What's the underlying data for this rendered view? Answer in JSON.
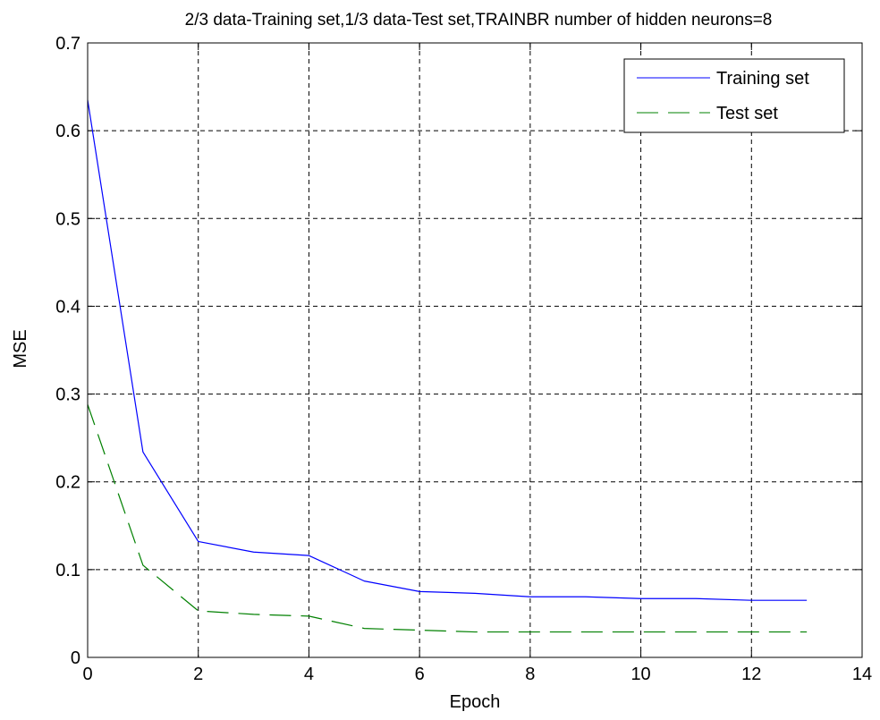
{
  "chart_data": {
    "type": "line",
    "title": "2/3 data-Training set,1/3 data-Test set,TRAINBR number of hidden neurons=8",
    "xlabel": "Epoch",
    "ylabel": "MSE",
    "xlim": [
      0,
      14
    ],
    "ylim": [
      0,
      0.7
    ],
    "xticks": [
      0,
      2,
      4,
      6,
      8,
      10,
      12,
      14
    ],
    "yticks": [
      0,
      0.1,
      0.2,
      0.3,
      0.4,
      0.5,
      0.6,
      0.7
    ],
    "xtick_labels": [
      "0",
      "2",
      "4",
      "6",
      "8",
      "10",
      "12",
      "14"
    ],
    "ytick_labels": [
      "0",
      "0.1",
      "0.2",
      "0.3",
      "0.4",
      "0.5",
      "0.6",
      "0.7"
    ],
    "grid": true,
    "legend_position": "top-right",
    "x": [
      0,
      1,
      2,
      3,
      4,
      5,
      6,
      7,
      8,
      9,
      10,
      11,
      12,
      13
    ],
    "series": [
      {
        "name": "Training set",
        "color": "#0000ff",
        "line_style": "solid",
        "values": [
          0.635,
          0.234,
          0.132,
          0.12,
          0.116,
          0.087,
          0.075,
          0.073,
          0.069,
          0.069,
          0.067,
          0.067,
          0.065,
          0.065
        ]
      },
      {
        "name": "Test set",
        "color": "#008000",
        "line_style": "dashed",
        "values": [
          0.288,
          0.105,
          0.053,
          0.049,
          0.047,
          0.033,
          0.031,
          0.029,
          0.029,
          0.029,
          0.029,
          0.029,
          0.029,
          0.029
        ]
      }
    ]
  }
}
